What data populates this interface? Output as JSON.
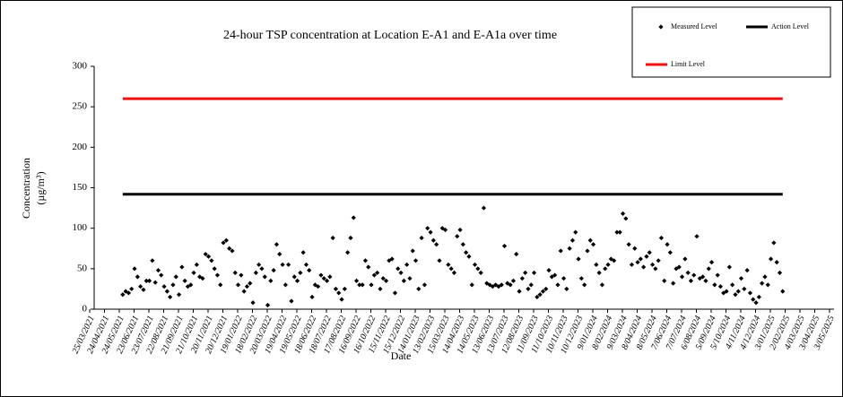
{
  "chart_data": {
    "type": "scatter",
    "title": "24-hour TSP concentration  at Location E-A1 and E-A1a over time",
    "xlabel": "Date",
    "ylabel": [
      "Concentration",
      "(µg/m³)"
    ],
    "ylim": [
      0,
      300
    ],
    "yticks": [
      0,
      50,
      100,
      150,
      200,
      250,
      300
    ],
    "xlim": [
      "2021-03-25",
      "2025-05-03"
    ],
    "xticks": [
      {
        "value": "2021-03-25",
        "label": "25/03/2021"
      },
      {
        "value": "2021-04-24",
        "label": "24/04/2021"
      },
      {
        "value": "2021-05-24",
        "label": "24/05/2021"
      },
      {
        "value": "2021-06-23",
        "label": "23/06/2021"
      },
      {
        "value": "2021-07-23",
        "label": "23/07/2021"
      },
      {
        "value": "2021-08-22",
        "label": "22/08/2021"
      },
      {
        "value": "2021-09-21",
        "label": "21/09/2021"
      },
      {
        "value": "2021-10-21",
        "label": "21/10/2021"
      },
      {
        "value": "2021-11-20",
        "label": "20/11/2021"
      },
      {
        "value": "2021-12-20",
        "label": "20/12/2021"
      },
      {
        "value": "2022-01-19",
        "label": "19/01/2022"
      },
      {
        "value": "2022-02-18",
        "label": "18/02/2022"
      },
      {
        "value": "2022-03-20",
        "label": "20/03/2022"
      },
      {
        "value": "2022-04-19",
        "label": "19/04/2022"
      },
      {
        "value": "2022-05-19",
        "label": "19/05/2022"
      },
      {
        "value": "2022-06-18",
        "label": "18/06/2022"
      },
      {
        "value": "2022-07-18",
        "label": "18/07/2022"
      },
      {
        "value": "2022-08-17",
        "label": "17/08/2022"
      },
      {
        "value": "2022-09-16",
        "label": "16/09/2022"
      },
      {
        "value": "2022-10-16",
        "label": "16/10/2022"
      },
      {
        "value": "2022-11-15",
        "label": "15/11/2022"
      },
      {
        "value": "2022-12-15",
        "label": "15/12/2022"
      },
      {
        "value": "2023-01-14",
        "label": "14/01/2023"
      },
      {
        "value": "2023-02-13",
        "label": "13/02/2023"
      },
      {
        "value": "2023-03-15",
        "label": "15/03/2023"
      },
      {
        "value": "2023-04-14",
        "label": "14/04/2023"
      },
      {
        "value": "2023-05-14",
        "label": "14/05/2023"
      },
      {
        "value": "2023-06-13",
        "label": "13/06/2023"
      },
      {
        "value": "2023-07-13",
        "label": "13/07/2023"
      },
      {
        "value": "2023-08-12",
        "label": "12/08/2023"
      },
      {
        "value": "2023-09-11",
        "label": "11/09/2023"
      },
      {
        "value": "2023-10-11",
        "label": "11/10/2023"
      },
      {
        "value": "2023-11-10",
        "label": "10/11/2023"
      },
      {
        "value": "2023-12-10",
        "label": "10/12/2023"
      },
      {
        "value": "2024-01-09",
        "label": "9/01/2024"
      },
      {
        "value": "2024-02-08",
        "label": "8/02/2024"
      },
      {
        "value": "2024-03-09",
        "label": "9/03/2024"
      },
      {
        "value": "2024-04-08",
        "label": "8/04/2024"
      },
      {
        "value": "2024-05-08",
        "label": "8/05/2024"
      },
      {
        "value": "2024-06-07",
        "label": "7/06/2024"
      },
      {
        "value": "2024-07-07",
        "label": "7/07/2024"
      },
      {
        "value": "2024-08-06",
        "label": "6/08/2024"
      },
      {
        "value": "2024-09-05",
        "label": "5/09/2024"
      },
      {
        "value": "2024-10-05",
        "label": "5/10/2024"
      },
      {
        "value": "2024-11-04",
        "label": "4/11/2024"
      },
      {
        "value": "2024-12-04",
        "label": "4/12/2024"
      },
      {
        "value": "2025-01-03",
        "label": "3/01/2025"
      },
      {
        "value": "2025-02-02",
        "label": "2/02/2025"
      },
      {
        "value": "2025-03-04",
        "label": "4/03/2025"
      },
      {
        "value": "2025-04-03",
        "label": "3/04/2025"
      },
      {
        "value": "2025-05-03",
        "label": "3/05/2025"
      }
    ],
    "series": [
      {
        "name": "Measured Level",
        "type": "scatter",
        "color": "#000000",
        "x": [
          "2021-05-31",
          "2021-06-06",
          "2021-06-12",
          "2021-06-18",
          "2021-06-24",
          "2021-06-30",
          "2021-07-06",
          "2021-07-12",
          "2021-07-18",
          "2021-07-24",
          "2021-07-30",
          "2021-08-05",
          "2021-08-11",
          "2021-08-17",
          "2021-08-23",
          "2021-08-29",
          "2021-09-04",
          "2021-09-10",
          "2021-09-16",
          "2021-09-22",
          "2021-09-28",
          "2021-10-04",
          "2021-10-10",
          "2021-10-16",
          "2021-10-22",
          "2021-10-28",
          "2021-11-03",
          "2021-11-09",
          "2021-11-15",
          "2021-11-21",
          "2021-11-27",
          "2021-12-03",
          "2021-12-09",
          "2021-12-15",
          "2021-12-21",
          "2021-12-27",
          "2022-01-02",
          "2022-01-08",
          "2022-01-14",
          "2022-01-20",
          "2022-01-26",
          "2022-02-01",
          "2022-02-07",
          "2022-02-13",
          "2022-02-19",
          "2022-02-25",
          "2022-03-03",
          "2022-03-09",
          "2022-03-15",
          "2022-03-21",
          "2022-03-27",
          "2022-04-02",
          "2022-04-08",
          "2022-04-14",
          "2022-04-20",
          "2022-04-26",
          "2022-05-02",
          "2022-05-08",
          "2022-05-14",
          "2022-05-20",
          "2022-05-26",
          "2022-06-01",
          "2022-06-07",
          "2022-06-13",
          "2022-06-19",
          "2022-06-25",
          "2022-07-01",
          "2022-07-07",
          "2022-07-13",
          "2022-07-19",
          "2022-07-25",
          "2022-07-31",
          "2022-08-06",
          "2022-08-12",
          "2022-08-18",
          "2022-08-24",
          "2022-08-30",
          "2022-09-05",
          "2022-09-11",
          "2022-09-17",
          "2022-09-23",
          "2022-09-29",
          "2022-10-05",
          "2022-10-11",
          "2022-10-17",
          "2022-10-23",
          "2022-10-29",
          "2022-11-04",
          "2022-11-10",
          "2022-11-16",
          "2022-11-22",
          "2022-11-28",
          "2022-12-04",
          "2022-12-10",
          "2022-12-16",
          "2022-12-22",
          "2022-12-28",
          "2023-01-03",
          "2023-01-09",
          "2023-01-15",
          "2023-01-21",
          "2023-01-27",
          "2023-02-02",
          "2023-02-08",
          "2023-02-14",
          "2023-02-20",
          "2023-02-26",
          "2023-03-04",
          "2023-03-10",
          "2023-03-16",
          "2023-03-22",
          "2023-03-28",
          "2023-04-03",
          "2023-04-09",
          "2023-04-15",
          "2023-04-21",
          "2023-04-27",
          "2023-05-03",
          "2023-05-09",
          "2023-05-15",
          "2023-05-21",
          "2023-05-27",
          "2023-06-02",
          "2023-06-08",
          "2023-06-14",
          "2023-06-20",
          "2023-06-26",
          "2023-07-02",
          "2023-07-08",
          "2023-07-14",
          "2023-07-20",
          "2023-07-26",
          "2023-08-01",
          "2023-08-07",
          "2023-08-13",
          "2023-08-19",
          "2023-08-25",
          "2023-08-31",
          "2023-09-06",
          "2023-09-12",
          "2023-09-18",
          "2023-09-24",
          "2023-09-30",
          "2023-10-06",
          "2023-10-12",
          "2023-10-18",
          "2023-10-24",
          "2023-10-30",
          "2023-11-05",
          "2023-11-11",
          "2023-11-17",
          "2023-11-23",
          "2023-11-29",
          "2023-12-05",
          "2023-12-11",
          "2023-12-17",
          "2023-12-23",
          "2023-12-29",
          "2024-01-04",
          "2024-01-10",
          "2024-01-16",
          "2024-01-22",
          "2024-01-28",
          "2024-02-03",
          "2024-02-09",
          "2024-02-15",
          "2024-02-21",
          "2024-02-27",
          "2024-03-04",
          "2024-03-10",
          "2024-03-16",
          "2024-03-22",
          "2024-03-28",
          "2024-04-03",
          "2024-04-09",
          "2024-04-15",
          "2024-04-21",
          "2024-04-27",
          "2024-05-03",
          "2024-05-09",
          "2024-05-15",
          "2024-05-21",
          "2024-05-27",
          "2024-06-02",
          "2024-06-08",
          "2024-06-14",
          "2024-06-20",
          "2024-06-26",
          "2024-07-02",
          "2024-07-08",
          "2024-07-14",
          "2024-07-20",
          "2024-07-26",
          "2024-08-01",
          "2024-08-07",
          "2024-08-13",
          "2024-08-19",
          "2024-08-25",
          "2024-08-31",
          "2024-09-06",
          "2024-09-12",
          "2024-09-18",
          "2024-09-24",
          "2024-09-30",
          "2024-10-06",
          "2024-10-12",
          "2024-10-18",
          "2024-10-24",
          "2024-10-30",
          "2024-11-05",
          "2024-11-11",
          "2024-11-17",
          "2024-11-23",
          "2024-11-29",
          "2024-12-05",
          "2024-12-11",
          "2024-12-17",
          "2024-12-23",
          "2024-12-29",
          "2025-01-04",
          "2025-01-10",
          "2025-01-16",
          "2025-01-22",
          "2025-01-28"
        ],
        "values": [
          18,
          22,
          20,
          25,
          50,
          40,
          28,
          24,
          35,
          35,
          60,
          33,
          48,
          42,
          28,
          22,
          15,
          30,
          40,
          18,
          52,
          35,
          28,
          30,
          45,
          55,
          40,
          38,
          68,
          65,
          60,
          50,
          42,
          30,
          82,
          85,
          75,
          72,
          45,
          30,
          42,
          22,
          28,
          32,
          8,
          45,
          55,
          50,
          40,
          5,
          35,
          48,
          80,
          68,
          55,
          30,
          55,
          10,
          40,
          35,
          45,
          70,
          55,
          48,
          15,
          30,
          28,
          42,
          38,
          35,
          40,
          88,
          25,
          20,
          12,
          25,
          70,
          88,
          113,
          35,
          30,
          30,
          60,
          52,
          30,
          42,
          45,
          25,
          38,
          35,
          60,
          62,
          20,
          50,
          45,
          35,
          55,
          38,
          72,
          60,
          25,
          88,
          30,
          100,
          95,
          85,
          80,
          60,
          100,
          98,
          55,
          50,
          45,
          90,
          98,
          80,
          70,
          65,
          30,
          55,
          50,
          45,
          125,
          32,
          30,
          28,
          30,
          28,
          30,
          78,
          32,
          30,
          35,
          68,
          22,
          38,
          45,
          25,
          30,
          45,
          15,
          18,
          22,
          25,
          48,
          40,
          42,
          30,
          72,
          38,
          25,
          75,
          85,
          95,
          62,
          38,
          30,
          72,
          85,
          80,
          55,
          45,
          30,
          50,
          55,
          62,
          60,
          95,
          95,
          118,
          112,
          80,
          55,
          75,
          58,
          62,
          52,
          65,
          70,
          55,
          50,
          60,
          88,
          35,
          80,
          70,
          32,
          50,
          52,
          40,
          62,
          45,
          35,
          42,
          90,
          38,
          40,
          35,
          50,
          58,
          30,
          42,
          28,
          20,
          22,
          52,
          30,
          18,
          22,
          38,
          25,
          48,
          20,
          12,
          8,
          15,
          32,
          40,
          30,
          62,
          82,
          58,
          45,
          22
        ]
      },
      {
        "name": "Action Level",
        "type": "line",
        "color": "#000000",
        "x": [
          "2021-05-31",
          "2025-01-28"
        ],
        "values": [
          142,
          142
        ]
      },
      {
        "name": "Limit Level",
        "type": "line",
        "color": "#ee1111",
        "x": [
          "2021-05-31",
          "2025-01-28"
        ],
        "values": [
          260,
          260
        ]
      }
    ]
  }
}
